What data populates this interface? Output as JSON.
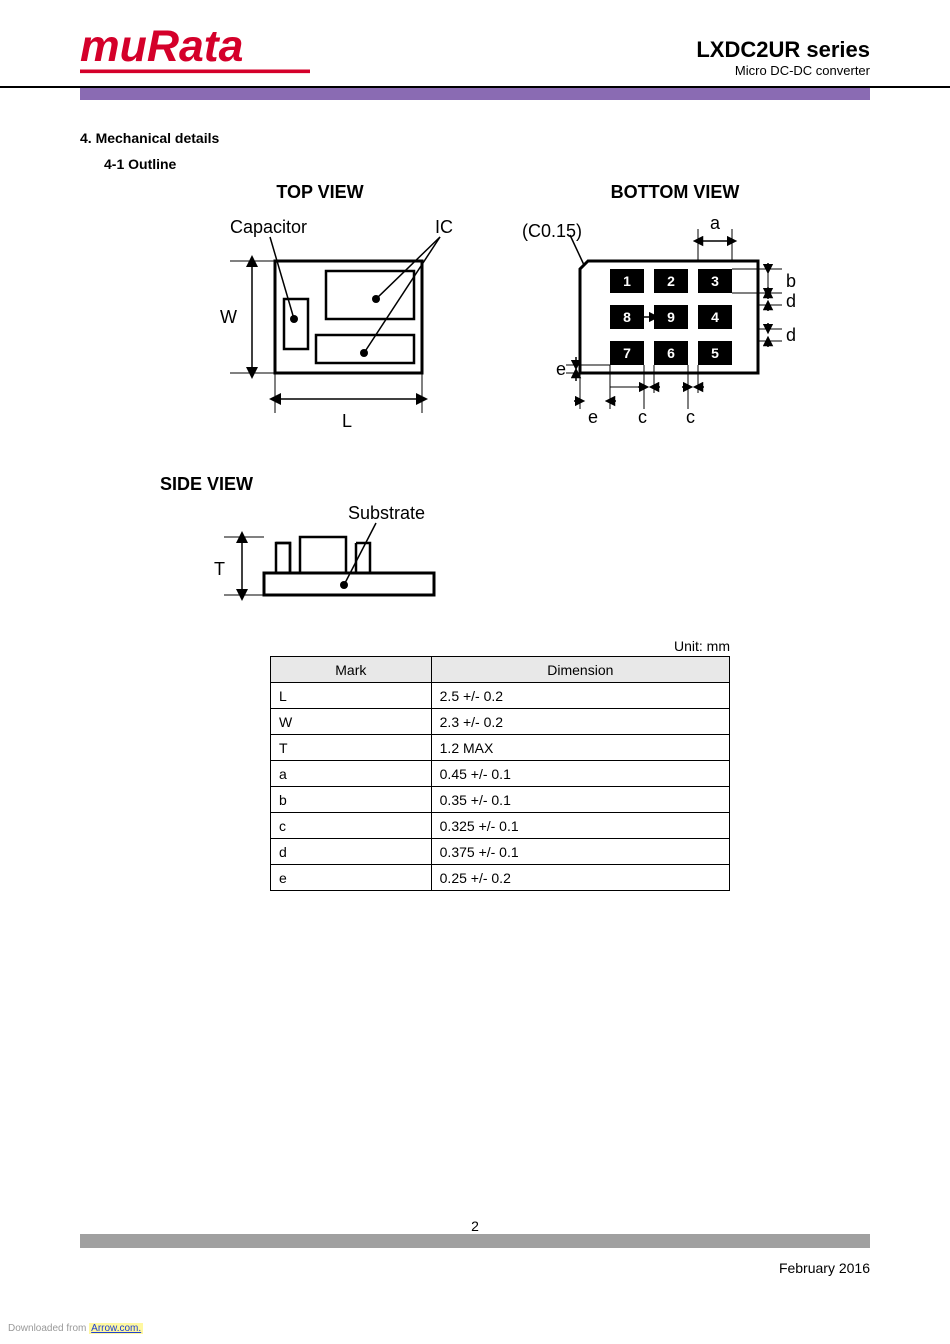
{
  "header": {
    "logo_text": "muRata",
    "series": "LXDC2UR  series",
    "subtitle": "Micro  DC-DC  converter"
  },
  "sections": {
    "title": "4. Mechanical details",
    "sub": "4-1  Outline"
  },
  "views": {
    "top": "TOP VIEW",
    "bottom": "BOTTOM VIEW",
    "side": "SIDE VIEW"
  },
  "labels": {
    "capacitor": "Capacitor",
    "ic": "IC",
    "substrate": "Substrate",
    "W": "W",
    "L": "L",
    "T": "T",
    "c015": "(C0.15)",
    "a": "a",
    "b": "b",
    "c": "c",
    "d": "d",
    "e": "e"
  },
  "bottom_pads": {
    "numbers": [
      "1",
      "2",
      "3",
      "8",
      "9",
      "4",
      "7",
      "6",
      "5"
    ],
    "pad_color": "#000000",
    "num_color": "#ffffff"
  },
  "table": {
    "unit": "Unit: mm",
    "headers": [
      "Mark",
      "Dimension"
    ],
    "rows": [
      [
        "L",
        "2.5 +/- 0.2"
      ],
      [
        "W",
        "2.3 +/- 0.2"
      ],
      [
        "T",
        "1.2 MAX"
      ],
      [
        "a",
        "0.45 +/- 0.1"
      ],
      [
        "b",
        "0.35 +/- 0.1"
      ],
      [
        "c",
        "0.325 +/- 0.1"
      ],
      [
        "d",
        "0.375 +/- 0.1"
      ],
      [
        "e",
        "0.25 +/- 0.2"
      ]
    ]
  },
  "footer": {
    "page": "2",
    "date": "February   2016",
    "download_prefix": "Downloaded from ",
    "download_link": "Arrow.com."
  },
  "colors": {
    "logo": "#d4002a",
    "purple_bar": "#8a6bb3",
    "footer_bar": "#a0a0a0",
    "table_header_bg": "#e8e8e8"
  }
}
